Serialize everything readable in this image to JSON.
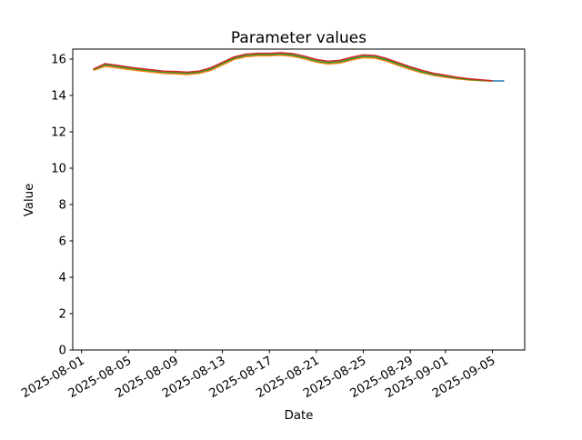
{
  "chart_data": {
    "type": "line",
    "title": "Parameter values",
    "xlabel": "Date",
    "ylabel": "Value",
    "grid": false,
    "legend": "none",
    "ylim": [
      0,
      16.55
    ],
    "y_ticks": [
      0,
      2,
      4,
      6,
      8,
      10,
      12,
      14,
      16
    ],
    "x_day_origin": "2025-08-01",
    "x_range_days": [
      -0.75,
      37.75
    ],
    "x_ticks": [
      {
        "label": "2025-08-01",
        "day": 0
      },
      {
        "label": "2025-08-05",
        "day": 4
      },
      {
        "label": "2025-08-09",
        "day": 8
      },
      {
        "label": "2025-08-13",
        "day": 12
      },
      {
        "label": "2025-08-17",
        "day": 16
      },
      {
        "label": "2025-08-21",
        "day": 20
      },
      {
        "label": "2025-08-25",
        "day": 24
      },
      {
        "label": "2025-08-29",
        "day": 28
      },
      {
        "label": "2025-09-01",
        "day": 31
      },
      {
        "label": "2025-09-05",
        "day": 35
      }
    ],
    "dates": [
      "2025-08-02",
      "2025-08-03",
      "2025-08-04",
      "2025-08-05",
      "2025-08-06",
      "2025-08-07",
      "2025-08-08",
      "2025-08-09",
      "2025-08-10",
      "2025-08-11",
      "2025-08-12",
      "2025-08-13",
      "2025-08-14",
      "2025-08-15",
      "2025-08-16",
      "2025-08-17",
      "2025-08-18",
      "2025-08-19",
      "2025-08-20",
      "2025-08-21",
      "2025-08-22",
      "2025-08-23",
      "2025-08-24",
      "2025-08-25",
      "2025-08-26",
      "2025-08-27",
      "2025-08-28",
      "2025-08-29",
      "2025-08-30",
      "2025-08-31",
      "2025-09-01",
      "2025-09-02",
      "2025-09-03",
      "2025-09-04",
      "2025-09-05",
      "2025-09-06"
    ],
    "series": [
      {
        "name": "series-blue",
        "color": "#1f77b4",
        "start_day": 1,
        "values": [
          15.42,
          15.68,
          15.6,
          15.5,
          15.42,
          15.35,
          15.28,
          15.26,
          15.22,
          15.28,
          15.45,
          15.75,
          16.05,
          16.2,
          16.25,
          16.25,
          16.28,
          16.22,
          16.08,
          15.9,
          15.8,
          15.85,
          16.02,
          16.15,
          16.12,
          15.95,
          15.72,
          15.5,
          15.3,
          15.15,
          15.05,
          14.95,
          14.88,
          14.83,
          14.8,
          14.8
        ]
      },
      {
        "name": "series-orange",
        "color": "#ff7f0e",
        "start_day": 1,
        "values": [
          15.38,
          15.6,
          15.52,
          15.43,
          15.35,
          15.28,
          15.21,
          15.19,
          15.15,
          15.21,
          15.38,
          15.68,
          15.98,
          16.13,
          16.18,
          16.18,
          16.21,
          16.15,
          16.01,
          15.83,
          15.73,
          15.78,
          15.95,
          16.08,
          16.05,
          15.88,
          15.65,
          15.43,
          15.24,
          15.1,
          15.0,
          14.91,
          14.85,
          14.81,
          14.79
        ]
      },
      {
        "name": "series-green",
        "color": "#2ca02c",
        "start_day": 1,
        "values": [
          15.42,
          15.68,
          15.6,
          15.5,
          15.42,
          15.35,
          15.28,
          15.26,
          15.22,
          15.28,
          15.45,
          15.75,
          16.05,
          16.2,
          16.25,
          16.25,
          16.28,
          16.22,
          16.08,
          15.9,
          15.8,
          15.85,
          16.02,
          16.15,
          16.12,
          15.95,
          15.72,
          15.5,
          15.3,
          15.15,
          15.05,
          14.95,
          14.88,
          14.83,
          14.8
        ]
      },
      {
        "name": "series-red",
        "color": "#d62728",
        "start_day": 1,
        "values": [
          15.45,
          15.75,
          15.66,
          15.56,
          15.48,
          15.41,
          15.34,
          15.32,
          15.28,
          15.34,
          15.52,
          15.82,
          16.12,
          16.27,
          16.32,
          16.32,
          16.35,
          16.3,
          16.16,
          15.98,
          15.88,
          15.93,
          16.1,
          16.23,
          16.2,
          16.03,
          15.8,
          15.58,
          15.38,
          15.22,
          15.11,
          15.0,
          14.92,
          14.86,
          14.81
        ]
      }
    ]
  }
}
